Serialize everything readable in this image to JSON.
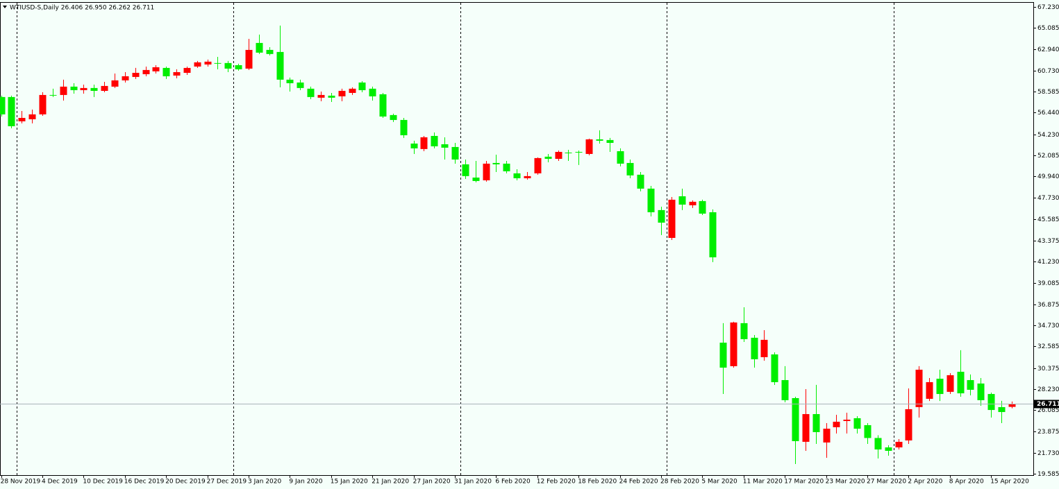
{
  "chart_data": {
    "type": "candlestick",
    "header": "WTIUSD-S,Daily  26.406 26.950 26.262 26.711",
    "categories": [
      "28 Nov 2019",
      null,
      null,
      null,
      "4 Dec 2019",
      null,
      null,
      null,
      "10 Dec 2019",
      null,
      null,
      null,
      "16 Dec 2019",
      null,
      null,
      null,
      "20 Dec 2019",
      null,
      null,
      null,
      "27 Dec 2019",
      null,
      null,
      null,
      "3 Jan 2020",
      null,
      null,
      null,
      "9 Jan 2020",
      null,
      null,
      null,
      "15 Jan 2020",
      null,
      null,
      null,
      "21 Jan 2020",
      null,
      null,
      null,
      "27 Jan 2020",
      null,
      null,
      null,
      "31 Jan 2020",
      null,
      null,
      null,
      "6 Feb 2020",
      null,
      null,
      null,
      "12 Feb 2020",
      null,
      null,
      null,
      "18 Feb 2020",
      null,
      null,
      null,
      "24 Feb 2020",
      null,
      null,
      null,
      "28 Feb 2020",
      null,
      null,
      null,
      "5 Mar 2020",
      null,
      null,
      null,
      "11 Mar 2020",
      null,
      null,
      null,
      "17 Mar 2020",
      null,
      null,
      null,
      "23 Mar 2020",
      null,
      null,
      null,
      "27 Mar 2020",
      null,
      null,
      null,
      "2 Apr 2020",
      null,
      null,
      null,
      "8 Apr 2020",
      null,
      null,
      null,
      "15 Apr 2020",
      null,
      null
    ],
    "open": [
      58.03,
      58.03,
      55.55,
      55.76,
      56.26,
      58.24,
      58.24,
      59.09,
      58.73,
      58.95,
      58.66,
      59.09,
      59.73,
      60.08,
      60.36,
      60.65,
      61.0,
      60.22,
      60.5,
      61.14,
      61.35,
      61.5,
      61.5,
      61.28,
      60.93,
      63.55,
      62.84,
      62.63,
      59.8,
      59.51,
      58.88,
      57.96,
      58.17,
      58.1,
      58.45,
      59.51,
      58.88,
      58.31,
      56.19,
      55.69,
      53.28,
      52.72,
      54.06,
      53.21,
      52.93,
      51.16,
      49.81,
      49.53,
      51.3,
      51.23,
      50.24,
      49.74,
      50.24,
      51.94,
      51.72,
      52.36,
      52.43,
      52.22,
      53.71,
      53.64,
      52.5,
      51.3,
      50.1,
      48.68,
      46.49,
      43.65,
      47.9,
      46.98,
      47.41,
      46.27,
      32.96,
      30.56,
      34.95,
      33.46,
      31.48,
      31.76,
      29.14,
      27.3,
      22.84,
      25.67,
      22.77,
      24.33,
      24.96,
      25.25,
      24.54,
      23.23,
      22.27,
      22.27,
      22.98,
      26.38,
      27.23,
      29.28,
      27.94,
      29.99,
      29.14,
      28.79,
      27.72,
      26.38,
      26.406
    ],
    "high": [
      58.17,
      58.17,
      56.61,
      56.75,
      58.52,
      58.88,
      59.8,
      59.44,
      59.3,
      59.3,
      59.58,
      60.43,
      60.57,
      61.0,
      61.14,
      61.28,
      61.14,
      60.86,
      61.14,
      61.71,
      61.85,
      62.13,
      61.71,
      61.43,
      63.97,
      64.4,
      63.12,
      65.32,
      60.01,
      59.8,
      59.09,
      58.59,
      58.45,
      58.88,
      59.02,
      59.65,
      59.09,
      58.45,
      56.33,
      55.9,
      53.57,
      54.06,
      54.41,
      53.92,
      53.35,
      51.65,
      51.51,
      51.51,
      52.15,
      51.51,
      50.66,
      50.38,
      51.87,
      52.22,
      52.57,
      52.64,
      52.57,
      53.78,
      54.63,
      53.85,
      52.79,
      51.65,
      50.38,
      48.96,
      46.84,
      47.83,
      48.68,
      47.48,
      47.55,
      46.56,
      34.95,
      35.09,
      36.57,
      33.74,
      34.24,
      31.97,
      30.56,
      27.44,
      28.22,
      28.65,
      24.75,
      25.6,
      25.81,
      25.46,
      24.75,
      23.51,
      22.49,
      23.12,
      28.29,
      30.56,
      29.35,
      30.2,
      29.85,
      32.19,
      29.71,
      29.35,
      27.86,
      27.02,
      26.95
    ],
    "low": [
      56.04,
      54.84,
      55.34,
      55.34,
      56.11,
      58.03,
      57.67,
      58.38,
      58.38,
      58.03,
      58.52,
      58.95,
      59.51,
      59.87,
      60.15,
      60.43,
      59.87,
      59.94,
      60.29,
      61.0,
      61.14,
      60.86,
      60.57,
      60.72,
      60.79,
      62.42,
      62.27,
      59.02,
      58.59,
      58.73,
      57.81,
      57.6,
      57.53,
      57.6,
      58.24,
      58.52,
      57.67,
      55.9,
      55.48,
      53.85,
      52.22,
      52.5,
      52.79,
      51.65,
      51.23,
      49.67,
      49.32,
      49.39,
      50.38,
      50.24,
      49.53,
      49.6,
      50.1,
      51.37,
      51.51,
      51.51,
      51.09,
      52.08,
      53.28,
      52.43,
      50.95,
      49.74,
      48.4,
      45.85,
      43.94,
      43.44,
      46.49,
      46.7,
      45.99,
      41.18,
      27.72,
      30.41,
      33.03,
      30.41,
      31.12,
      28.64,
      26.87,
      20.57,
      21.92,
      22.63,
      21.21,
      23.69,
      23.69,
      23.69,
      22.63,
      21.14,
      21.42,
      22.06,
      22.63,
      25.32,
      27.01,
      27.01,
      27.72,
      27.44,
      27.58,
      26.52,
      25.32,
      24.75,
      26.262
    ],
    "close": [
      56.26,
      55.05,
      55.9,
      56.26,
      58.24,
      58.17,
      59.09,
      58.73,
      58.95,
      58.66,
      59.16,
      59.73,
      60.15,
      60.5,
      60.79,
      61.07,
      60.15,
      60.57,
      61.0,
      61.57,
      61.64,
      61.43,
      60.93,
      60.86,
      62.84,
      62.56,
      62.42,
      59.8,
      59.44,
      58.95,
      58.03,
      58.24,
      57.96,
      58.66,
      58.88,
      58.73,
      58.1,
      56.04,
      55.69,
      54.13,
      52.79,
      53.92,
      53.0,
      52.86,
      51.65,
      49.96,
      49.46,
      51.23,
      51.16,
      50.45,
      49.74,
      49.96,
      51.8,
      51.72,
      52.43,
      52.29,
      52.36,
      53.71,
      53.57,
      53.35,
      51.23,
      50.03,
      48.68,
      46.27,
      45.21,
      47.55,
      47.05,
      47.34,
      46.13,
      41.67,
      30.41,
      35.02,
      33.32,
      31.27,
      33.25,
      28.93,
      27.09,
      22.91,
      25.67,
      23.83,
      24.18,
      24.89,
      25.1,
      24.18,
      23.23,
      22.06,
      21.92,
      22.84,
      26.17,
      30.2,
      28.93,
      27.72,
      29.64,
      27.79,
      28.15,
      27.09,
      26.09,
      25.88,
      26.711
    ],
    "up_color": "#ff0000",
    "down_color": "#00ee00",
    "ylim": [
      19.44,
      67.65
    ],
    "yticks": [
      {
        "value": 67.23,
        "label": "67.230"
      },
      {
        "value": 65.085,
        "label": "65.085"
      },
      {
        "value": 62.94,
        "label": "62.940"
      },
      {
        "value": 60.73,
        "label": "60.730"
      },
      {
        "value": 58.585,
        "label": "58.585"
      },
      {
        "value": 56.44,
        "label": "56.440"
      },
      {
        "value": 54.23,
        "label": "54.230"
      },
      {
        "value": 52.085,
        "label": "52.085"
      },
      {
        "value": 49.94,
        "label": "49.940"
      },
      {
        "value": 47.73,
        "label": "47.730"
      },
      {
        "value": 45.585,
        "label": "45.585"
      },
      {
        "value": 43.375,
        "label": "43.375"
      },
      {
        "value": 41.23,
        "label": "41.230"
      },
      {
        "value": 39.085,
        "label": "39.085"
      },
      {
        "value": 36.875,
        "label": "36.875"
      },
      {
        "value": 34.73,
        "label": "34.730"
      },
      {
        "value": 32.585,
        "label": "32.585"
      },
      {
        "value": 30.375,
        "label": "30.375"
      },
      {
        "value": 28.23,
        "label": "28.230"
      },
      {
        "value": 26.085,
        "label": "26.085"
      },
      {
        "value": 23.875,
        "label": "23.875"
      },
      {
        "value": 21.73,
        "label": "21.730"
      },
      {
        "value": 19.585,
        "label": "19.585"
      }
    ],
    "grid": false
  }
}
